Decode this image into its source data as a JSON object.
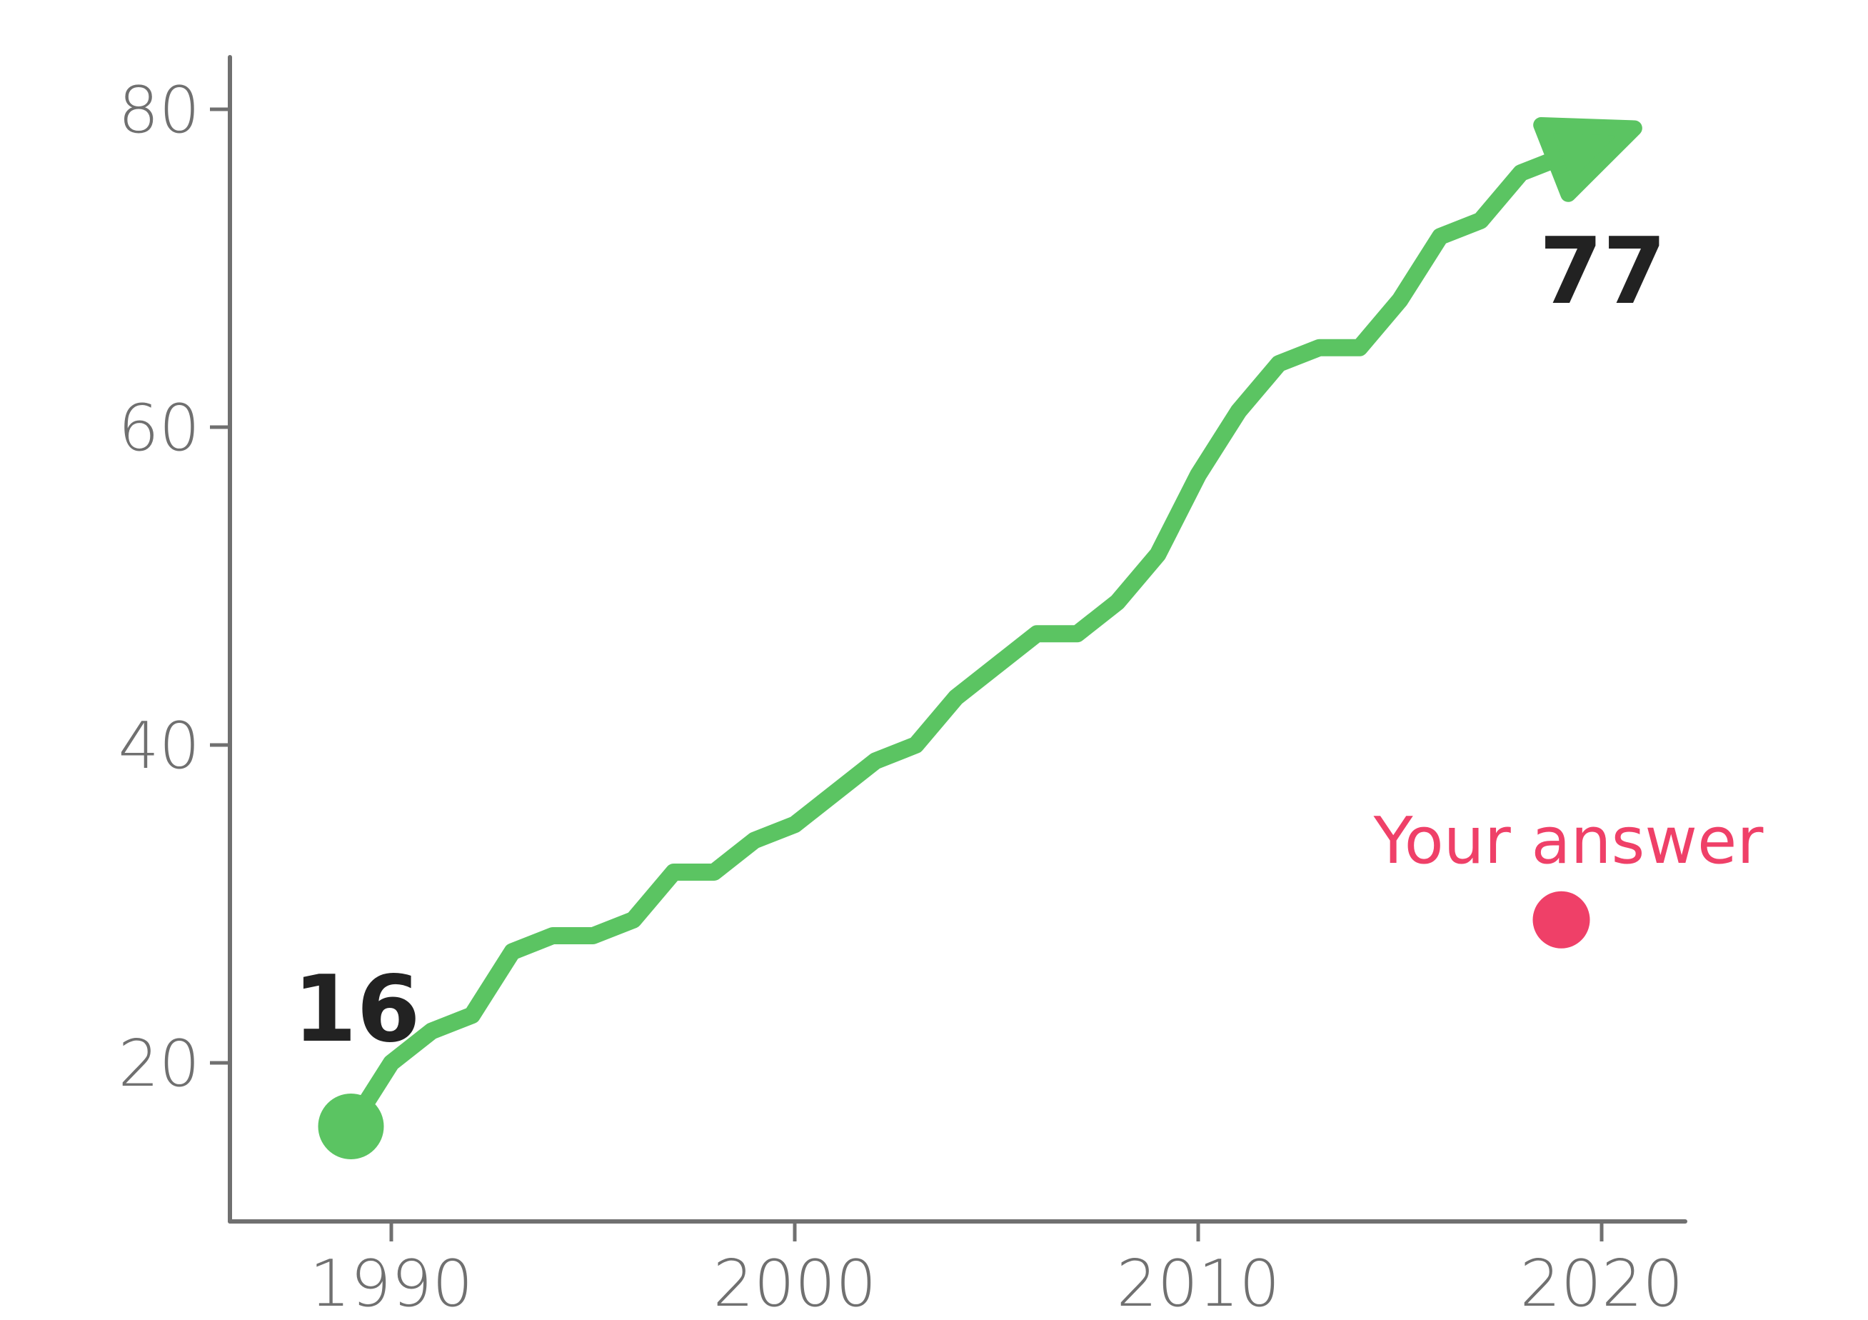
{
  "chart_data": {
    "type": "line",
    "x": [
      1989,
      1990,
      1991,
      1992,
      1993,
      1994,
      1995,
      1996,
      1997,
      1998,
      1999,
      2000,
      2001,
      2002,
      2003,
      2004,
      2005,
      2006,
      2007,
      2008,
      2009,
      2010,
      2011,
      2012,
      2013,
      2014,
      2015,
      2016,
      2017,
      2018,
      2019
    ],
    "series": [
      {
        "values": [
          16,
          20,
          22,
          23,
          27,
          28,
          28,
          29,
          32,
          32,
          34,
          35,
          37,
          39,
          40,
          43,
          45,
          47,
          47,
          49,
          52,
          57,
          61,
          64,
          65,
          65,
          68,
          72,
          73,
          76,
          77
        ]
      }
    ],
    "annotations": {
      "start_value": "16",
      "end_value": "77",
      "answer_label": "Your answer",
      "answer_point": {
        "x": 2019,
        "y": 29
      }
    },
    "xticks": [
      "1990",
      "2000",
      "2010",
      "2020"
    ],
    "yticks": [
      "20",
      "40",
      "60",
      "80"
    ],
    "xlim": [
      1985,
      2022
    ],
    "ylim": [
      10,
      83
    ],
    "grid": false,
    "colors": {
      "line": "#5bc462",
      "answer": "#ef4068",
      "axis": "#707070",
      "tick_label": "#707070",
      "value_label": "#222222"
    }
  }
}
